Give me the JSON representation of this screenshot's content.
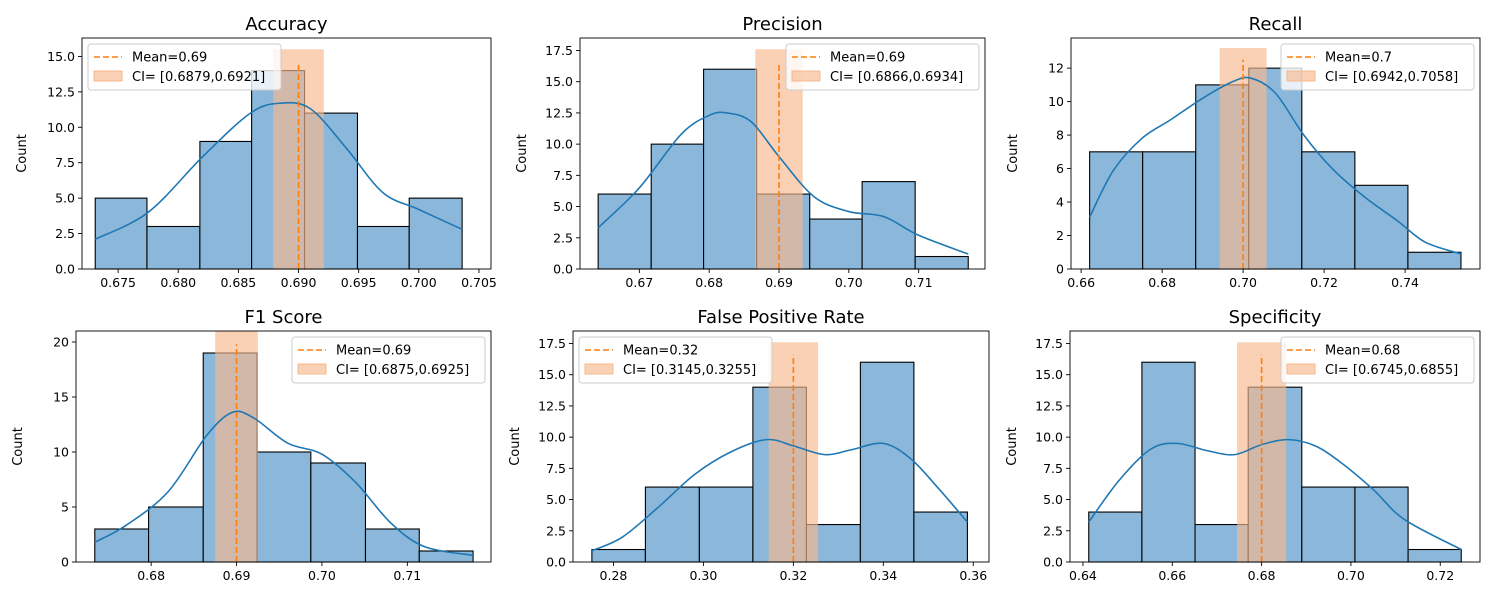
{
  "colors": {
    "bar_fill": "#8bb8da",
    "bar_edge": "#000000",
    "kde": "#1f77b4",
    "mean_line": "#ff7f0e",
    "ci_fill": "#f7b98e",
    "overlap": "#a59a96"
  },
  "chart_data": [
    {
      "type": "bar",
      "title": "Accuracy",
      "ylabel": "Count",
      "xlim": [
        0.672,
        0.706
      ],
      "ylim": [
        0,
        16.3
      ],
      "xticks": [
        0.675,
        0.68,
        0.685,
        0.69,
        0.695,
        0.7,
        0.705
      ],
      "xtick_labels": [
        "0.675",
        "0.680",
        "0.685",
        "0.690",
        "0.695",
        "0.700",
        "0.705"
      ],
      "yticks": [
        0,
        2.5,
        5,
        7.5,
        10,
        12.5,
        15
      ],
      "ytick_labels": [
        "0.0",
        "2.5",
        "5.0",
        "7.5",
        "10.0",
        "12.5",
        "15.0"
      ],
      "bin_edges": [
        0.6731,
        0.6774,
        0.6818,
        0.6861,
        0.6905,
        0.6949,
        0.6992,
        0.7036
      ],
      "counts": [
        5,
        3,
        9,
        14,
        11,
        3,
        5
      ],
      "kde_x": [
        0.6731,
        0.6775,
        0.682,
        0.686,
        0.6885,
        0.691,
        0.694,
        0.697,
        0.7,
        0.7036
      ],
      "kde_y": [
        2.1,
        4.0,
        7.9,
        11.0,
        11.7,
        11.3,
        8.5,
        5.4,
        4.2,
        2.8
      ],
      "mean": 0.69,
      "mean_top": 14.5,
      "ci": [
        0.6879,
        0.6921
      ],
      "ci_top": 15.5,
      "legend": {
        "mean": "Mean=0.69",
        "ci": "CI= [0.6879,0.6921]"
      },
      "legend_loc": "upper-left"
    },
    {
      "type": "bar",
      "title": "Precision",
      "ylabel": "Count",
      "xlim": [
        0.6615,
        0.7195
      ],
      "ylim": [
        0,
        18.5
      ],
      "xticks": [
        0.67,
        0.68,
        0.69,
        0.7,
        0.71
      ],
      "xtick_labels": [
        "0.67",
        "0.68",
        "0.69",
        "0.70",
        "0.71"
      ],
      "yticks": [
        0,
        2.5,
        5,
        7.5,
        10,
        12.5,
        15,
        17.5
      ],
      "ytick_labels": [
        "0.0",
        "2.5",
        "5.0",
        "7.5",
        "10.0",
        "12.5",
        "15.0",
        "17.5"
      ],
      "bin_edges": [
        0.6641,
        0.6717,
        0.6792,
        0.6868,
        0.6944,
        0.7019,
        0.7095,
        0.7171
      ],
      "counts": [
        6,
        10,
        16,
        6,
        4,
        7,
        1
      ],
      "kde_x": [
        0.6641,
        0.67,
        0.676,
        0.68,
        0.6825,
        0.686,
        0.69,
        0.695,
        0.7,
        0.705,
        0.71,
        0.7171
      ],
      "kde_y": [
        3.3,
        6.5,
        10.8,
        12.3,
        12.5,
        11.8,
        9.0,
        5.8,
        4.6,
        4.2,
        2.7,
        1.2
      ],
      "mean": 0.69,
      "mean_top": 16.6,
      "ci": [
        0.6866,
        0.6934
      ],
      "ci_top": 17.6,
      "legend": {
        "mean": "Mean=0.69",
        "ci": "CI= [0.6866,0.6934]"
      },
      "legend_loc": "upper-right"
    },
    {
      "type": "bar",
      "title": "Recall",
      "ylabel": "Count",
      "xlim": [
        0.6575,
        0.7585
      ],
      "ylim": [
        0,
        13.8
      ],
      "xticks": [
        0.66,
        0.68,
        0.7,
        0.72,
        0.74
      ],
      "xtick_labels": [
        "0.66",
        "0.68",
        "0.70",
        "0.72",
        "0.74"
      ],
      "yticks": [
        0,
        2,
        4,
        6,
        8,
        10,
        12
      ],
      "ytick_labels": [
        "0",
        "2",
        "4",
        "6",
        "8",
        "10",
        "12"
      ],
      "bin_edges": [
        0.6621,
        0.6752,
        0.6883,
        0.7014,
        0.7145,
        0.7276,
        0.7407,
        0.7538
      ],
      "counts": [
        7,
        7,
        11,
        12,
        7,
        5,
        1
      ],
      "kde_x": [
        0.6621,
        0.668,
        0.675,
        0.682,
        0.69,
        0.6975,
        0.702,
        0.708,
        0.715,
        0.722,
        0.73,
        0.738,
        0.745,
        0.7538
      ],
      "kde_y": [
        3.1,
        5.9,
        7.8,
        8.9,
        10.2,
        11.2,
        11.4,
        10.5,
        8.0,
        6.0,
        4.3,
        2.9,
        1.6,
        0.9
      ],
      "mean": 0.7,
      "mean_top": 12.5,
      "ci": [
        0.6942,
        0.7058
      ],
      "ci_top": 13.2,
      "legend": {
        "mean": "Mean=0.7",
        "ci": "CI= [0.6942,0.7058]"
      },
      "legend_loc": "upper-right"
    },
    {
      "type": "bar",
      "title": "F1 Score",
      "ylabel": "Count",
      "xlim": [
        0.6712,
        0.7198
      ],
      "ylim": [
        0,
        21
      ],
      "xticks": [
        0.68,
        0.69,
        0.7,
        0.71
      ],
      "xtick_labels": [
        "0.68",
        "0.69",
        "0.70",
        "0.71"
      ],
      "yticks": [
        0,
        5,
        10,
        15,
        20
      ],
      "ytick_labels": [
        "0",
        "5",
        "10",
        "15",
        "20"
      ],
      "bin_edges": [
        0.6734,
        0.6797,
        0.6861,
        0.6924,
        0.6987,
        0.7051,
        0.7114,
        0.7177
      ],
      "counts": [
        3,
        5,
        19,
        10,
        9,
        3,
        1
      ],
      "kde_x": [
        0.6734,
        0.677,
        0.682,
        0.6865,
        0.6895,
        0.692,
        0.696,
        0.7,
        0.704,
        0.708,
        0.712,
        0.7177
      ],
      "kde_y": [
        1.8,
        3.3,
        6.4,
        11.5,
        13.6,
        13.1,
        10.8,
        9.8,
        7.2,
        3.6,
        1.4,
        0.6
      ],
      "mean": 0.69,
      "mean_top": 19.8,
      "ci": [
        0.6875,
        0.6925
      ],
      "ci_top": 21.0,
      "legend": {
        "mean": "Mean=0.69",
        "ci": "CI= [0.6875,0.6925]"
      },
      "legend_loc": "upper-right"
    },
    {
      "type": "bar",
      "title": "False Positive Rate",
      "ylabel": "Count",
      "xlim": [
        0.271,
        0.3635
      ],
      "ylim": [
        0,
        18.5
      ],
      "xticks": [
        0.28,
        0.3,
        0.32,
        0.34,
        0.36
      ],
      "xtick_labels": [
        "0.28",
        "0.30",
        "0.32",
        "0.34",
        "0.36"
      ],
      "yticks": [
        0,
        2.5,
        5,
        7.5,
        10,
        12.5,
        15,
        17.5
      ],
      "ytick_labels": [
        "0.0",
        "2.5",
        "5.0",
        "7.5",
        "10.0",
        "12.5",
        "15.0",
        "17.5"
      ],
      "bin_edges": [
        0.2752,
        0.2871,
        0.2991,
        0.311,
        0.3229,
        0.3349,
        0.3468,
        0.3587
      ],
      "counts": [
        1,
        6,
        6,
        14,
        3,
        16,
        4
      ],
      "kde_x": [
        0.2752,
        0.282,
        0.29,
        0.298,
        0.306,
        0.314,
        0.32,
        0.327,
        0.333,
        0.34,
        0.346,
        0.352,
        0.3587
      ],
      "kde_y": [
        0.9,
        2.0,
        4.4,
        7.0,
        8.8,
        9.8,
        9.3,
        8.6,
        9.0,
        9.5,
        8.3,
        6.0,
        3.2
      ],
      "mean": 0.32,
      "mean_top": 16.6,
      "ci": [
        0.3145,
        0.3255
      ],
      "ci_top": 17.6,
      "legend": {
        "mean": "Mean=0.32",
        "ci": "CI= [0.3145,0.3255]"
      },
      "legend_loc": "upper-left"
    },
    {
      "type": "bar",
      "title": "Specificity",
      "ylabel": "Count",
      "xlim": [
        0.6371,
        0.7289
      ],
      "ylim": [
        0,
        18.5
      ],
      "xticks": [
        0.64,
        0.66,
        0.68,
        0.7,
        0.72
      ],
      "xtick_labels": [
        "0.64",
        "0.66",
        "0.68",
        "0.70",
        "0.72"
      ],
      "yticks": [
        0,
        2.5,
        5,
        7.5,
        10,
        12.5,
        15,
        17.5
      ],
      "ytick_labels": [
        "0.0",
        "2.5",
        "5.0",
        "7.5",
        "10.0",
        "12.5",
        "15.0",
        "17.5"
      ],
      "bin_edges": [
        0.6413,
        0.6532,
        0.6651,
        0.677,
        0.689,
        0.7009,
        0.7128,
        0.7247
      ],
      "counts": [
        4,
        16,
        3,
        14,
        6,
        6,
        1
      ],
      "kde_x": [
        0.6413,
        0.648,
        0.655,
        0.661,
        0.668,
        0.674,
        0.68,
        0.686,
        0.692,
        0.698,
        0.705,
        0.712,
        0.7247
      ],
      "kde_y": [
        3.2,
        6.5,
        9.0,
        9.5,
        8.9,
        8.6,
        9.4,
        9.8,
        9.3,
        7.9,
        5.8,
        3.4,
        1.0
      ],
      "mean": 0.68,
      "mean_top": 16.6,
      "ci": [
        0.6745,
        0.6855
      ],
      "ci_top": 17.6,
      "legend": {
        "mean": "Mean=0.68",
        "ci": "CI= [0.6745,0.6855]"
      },
      "legend_loc": "upper-right"
    }
  ]
}
